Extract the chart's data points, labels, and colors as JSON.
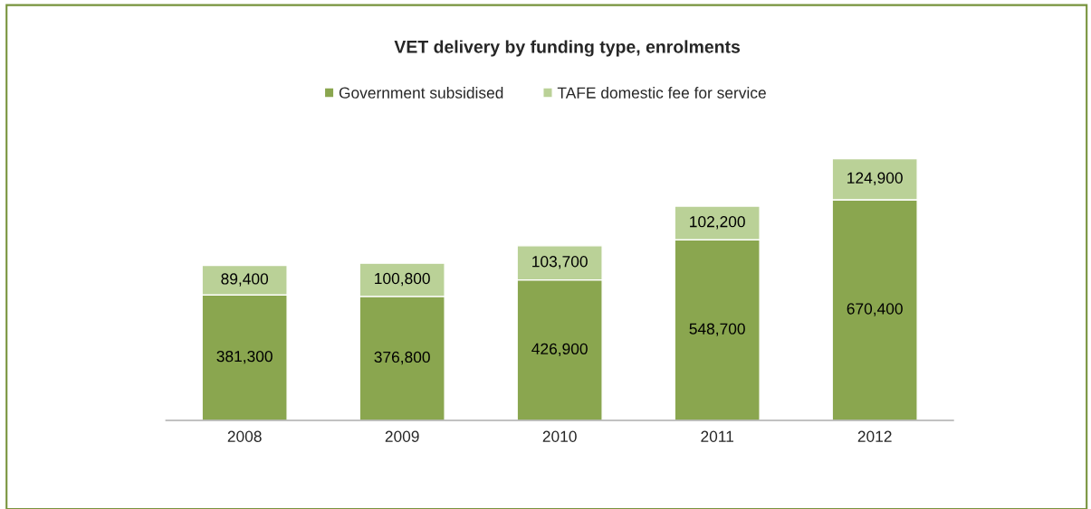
{
  "chart_data": {
    "type": "bar",
    "stacked": true,
    "title": "VET delivery by funding type, enrolments",
    "categories": [
      "2008",
      "2009",
      "2010",
      "2011",
      "2012"
    ],
    "series": [
      {
        "name": "Government subsidised",
        "color": "#8aa64f",
        "values": [
          381300,
          376800,
          426900,
          548700,
          670400
        ],
        "value_labels": [
          "381,300",
          "376,800",
          "426,900",
          "548,700",
          "670,400"
        ]
      },
      {
        "name": "TAFE domestic fee for service",
        "color": "#bad197",
        "values": [
          89400,
          100800,
          103700,
          102200,
          124900
        ],
        "value_labels": [
          "89,400",
          "100,800",
          "103,700",
          "102,200",
          "124,900"
        ]
      }
    ],
    "legend": "top",
    "grid": false,
    "tick_labels": "x"
  }
}
